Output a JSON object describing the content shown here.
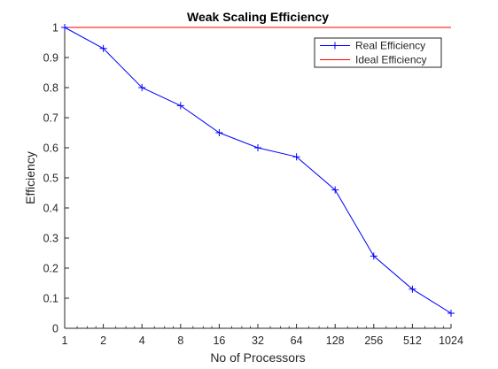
{
  "chart_data": {
    "type": "line",
    "title": "Weak Scaling Efficiency",
    "xlabel": "No of Processors",
    "ylabel": "Efficiency",
    "x_scale": "log2",
    "x": [
      1,
      2,
      4,
      8,
      16,
      32,
      64,
      128,
      256,
      512,
      1024
    ],
    "x_tick_labels": [
      "1",
      "2",
      "4",
      "8",
      "16",
      "32",
      "64",
      "128",
      "256",
      "512",
      "1024"
    ],
    "y_ticks": [
      0,
      0.1,
      0.2,
      0.3,
      0.4,
      0.5,
      0.6,
      0.7,
      0.8,
      0.9,
      1
    ],
    "y_tick_labels": [
      "0",
      "0.1",
      "0.2",
      "0.3",
      "0.4",
      "0.5",
      "0.6",
      "0.7",
      "0.8",
      "0.9",
      "1"
    ],
    "xlim": [
      1,
      1024
    ],
    "ylim": [
      0,
      1
    ],
    "grid": false,
    "legend_position": "top-right",
    "series": [
      {
        "name": "Real Efficiency",
        "color": "#0000ff",
        "marker": "+",
        "x": [
          1,
          2,
          4,
          8,
          16,
          32,
          64,
          128,
          256,
          512,
          1024
        ],
        "values": [
          1.0,
          0.93,
          0.8,
          0.74,
          0.65,
          0.6,
          0.57,
          0.46,
          0.24,
          0.13,
          0.05
        ]
      },
      {
        "name": "Ideal Efficiency",
        "color": "#ff0000",
        "marker": "none",
        "x": [
          1,
          1024
        ],
        "values": [
          1.0,
          1.0
        ]
      }
    ]
  }
}
